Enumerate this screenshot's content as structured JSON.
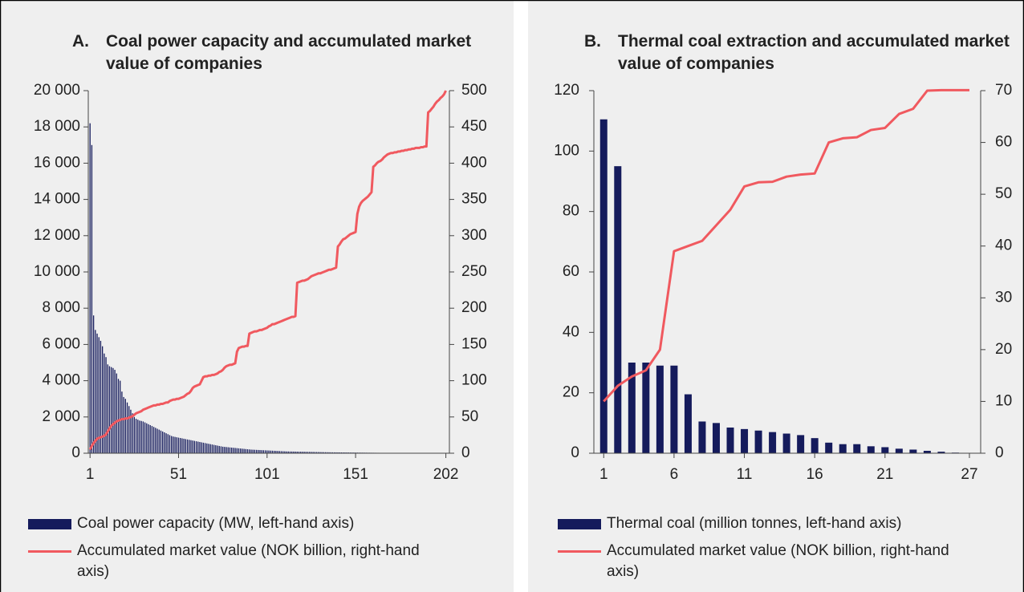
{
  "chart_data": [
    {
      "label": "A.",
      "title": "Coal power capacity and accumulated market value of companies",
      "type": "combo",
      "legend": "bottom",
      "grid": false,
      "x": [
        1,
        2,
        3,
        4,
        5,
        6,
        7,
        8,
        9,
        10,
        11,
        12,
        13,
        14,
        15,
        16,
        17,
        18,
        19,
        20,
        21,
        22,
        23,
        24,
        25,
        26,
        27,
        28,
        29,
        30,
        31,
        32,
        33,
        34,
        35,
        36,
        37,
        38,
        39,
        40,
        41,
        42,
        43,
        44,
        45,
        46,
        47,
        48,
        49,
        50,
        51,
        52,
        53,
        54,
        55,
        56,
        57,
        58,
        59,
        60,
        61,
        62,
        63,
        64,
        65,
        66,
        67,
        68,
        69,
        70,
        71,
        72,
        73,
        74,
        75,
        76,
        77,
        78,
        79,
        80,
        81,
        82,
        83,
        84,
        85,
        86,
        87,
        88,
        89,
        90,
        91,
        92,
        93,
        94,
        95,
        96,
        97,
        98,
        99,
        100,
        101,
        102,
        103,
        104,
        105,
        106,
        107,
        108,
        109,
        110,
        111,
        112,
        113,
        114,
        115,
        116,
        117,
        118,
        119,
        120,
        121,
        122,
        123,
        124,
        125,
        126,
        127,
        128,
        129,
        130,
        131,
        132,
        133,
        134,
        135,
        136,
        137,
        138,
        139,
        140,
        141,
        142,
        143,
        144,
        145,
        146,
        147,
        148,
        149,
        150,
        151,
        152,
        153,
        154,
        155,
        156,
        157,
        158,
        159,
        160,
        161,
        162,
        163,
        164,
        165,
        166,
        167,
        168,
        169,
        170,
        171,
        172,
        173,
        174,
        175,
        176,
        177,
        178,
        179,
        180,
        181,
        182,
        183,
        184,
        185,
        186,
        187,
        188,
        189,
        190,
        191,
        192,
        193,
        194,
        195,
        196,
        197,
        198,
        199,
        200,
        201,
        202
      ],
      "xlim": [
        0,
        204
      ],
      "xticks": [
        1,
        51,
        101,
        151,
        202
      ],
      "ylim": [
        0,
        20000
      ],
      "yticks": [
        0,
        {
          "value": 2000,
          "label": "2 000"
        },
        {
          "value": 4000,
          "label": "4 000"
        },
        {
          "value": 6000,
          "label": "6 000"
        },
        {
          "value": 8000,
          "label": "8 000"
        },
        {
          "value": 10000,
          "label": "10 000"
        },
        {
          "value": 12000,
          "label": "12 000"
        },
        {
          "value": 14000,
          "label": "14 000"
        },
        {
          "value": 16000,
          "label": "16 000"
        },
        {
          "value": 18000,
          "label": "18 000"
        },
        {
          "value": 20000,
          "label": "20 000"
        }
      ],
      "y2lim": [
        0,
        500
      ],
      "y2ticks": [
        0,
        50,
        100,
        150,
        200,
        250,
        300,
        350,
        400,
        450,
        500
      ],
      "series": [
        {
          "name": "Coal power capacity (MW, left-hand axis)",
          "type": "bar",
          "color": "#151b5c",
          "values": [
            18200,
            17000,
            7600,
            6800,
            6600,
            6400,
            6200,
            5900,
            5500,
            5300,
            4900,
            4800,
            4750,
            4700,
            4600,
            4400,
            4100,
            4000,
            3400,
            3100,
            3000,
            2800,
            2600,
            2400,
            2200,
            2000,
            1900,
            1850,
            1800,
            1780,
            1750,
            1700,
            1650,
            1600,
            1550,
            1500,
            1450,
            1400,
            1350,
            1300,
            1250,
            1200,
            1150,
            1100,
            1050,
            1000,
            950,
            920,
            900,
            880,
            860,
            840,
            820,
            800,
            780,
            760,
            740,
            720,
            700,
            680,
            660,
            640,
            620,
            600,
            580,
            560,
            540,
            520,
            500,
            480,
            460,
            440,
            420,
            400,
            380,
            360,
            350,
            340,
            330,
            320,
            310,
            300,
            290,
            280,
            270,
            260,
            250,
            240,
            230,
            220,
            210,
            200,
            195,
            190,
            185,
            180,
            175,
            170,
            165,
            160,
            155,
            150,
            145,
            140,
            135,
            130,
            125,
            120,
            115,
            110,
            105,
            100,
            98,
            96,
            94,
            92,
            90,
            88,
            86,
            84,
            82,
            80,
            78,
            76,
            74,
            72,
            70,
            68,
            66,
            64,
            62,
            60,
            58,
            56,
            54,
            52,
            50,
            49,
            48,
            47,
            46,
            45,
            44,
            43,
            42,
            41,
            40,
            39,
            38,
            37,
            36,
            35,
            34,
            33,
            32,
            31,
            30,
            29,
            28,
            27,
            26,
            25,
            24,
            23,
            22,
            21,
            20,
            20,
            19,
            19,
            18,
            18,
            17,
            17,
            16,
            16,
            15,
            15,
            14,
            14,
            13,
            13,
            12,
            12,
            11,
            11,
            10,
            10,
            9,
            9,
            8,
            8,
            7,
            7,
            6,
            6,
            5,
            5,
            4,
            4,
            3,
            2
          ]
        },
        {
          "name": "Accumulated market value (NOK billion, right-hand axis)",
          "type": "line",
          "axis": "y2",
          "color": "#f0595f",
          "values": [
            5,
            10,
            14,
            17,
            20,
            21,
            22,
            23,
            24,
            26,
            30,
            34,
            38,
            40,
            42,
            44,
            45,
            46,
            47,
            47,
            48,
            48,
            49,
            50,
            51,
            53,
            55,
            56,
            57,
            58,
            60,
            61,
            62,
            63,
            64,
            65,
            66,
            66,
            67,
            67,
            68,
            68,
            69,
            70,
            70,
            72,
            73,
            74,
            74,
            75,
            75,
            76,
            77,
            78,
            80,
            82,
            83,
            86,
            90,
            92,
            93,
            94,
            95,
            100,
            105,
            106,
            106,
            107,
            107,
            108,
            108,
            109,
            110,
            112,
            113,
            115,
            118,
            120,
            121,
            122,
            122,
            123,
            124,
            140,
            145,
            146,
            147,
            147,
            148,
            148,
            165,
            166,
            167,
            168,
            168,
            169,
            170,
            170,
            171,
            172,
            173,
            175,
            176,
            178,
            178,
            179,
            180,
            181,
            182,
            183,
            184,
            185,
            186,
            187,
            188,
            188,
            189,
            235,
            236,
            237,
            238,
            238,
            239,
            240,
            242,
            244,
            245,
            246,
            247,
            248,
            248,
            249,
            250,
            251,
            252,
            253,
            253,
            254,
            255,
            256,
            285,
            288,
            292,
            295,
            296,
            298,
            300,
            302,
            303,
            304,
            305,
            330,
            340,
            345,
            348,
            350,
            352,
            354,
            357,
            360,
            395,
            397,
            400,
            402,
            403,
            405,
            408,
            410,
            412,
            413,
            414,
            414,
            415,
            415,
            416,
            416,
            417,
            417,
            418,
            418,
            419,
            419,
            420,
            420,
            421,
            421,
            421,
            422,
            422,
            423,
            423,
            470,
            472,
            475,
            478,
            482,
            485,
            487,
            490,
            492,
            495,
            500
          ]
        }
      ]
    },
    {
      "label": "B.",
      "title": "Thermal coal extraction and accumulated market value of companies",
      "type": "combo",
      "legend": "bottom",
      "grid": false,
      "x": [
        1,
        2,
        3,
        4,
        5,
        6,
        7,
        8,
        9,
        10,
        11,
        12,
        13,
        14,
        15,
        16,
        17,
        18,
        19,
        20,
        21,
        22,
        23,
        24,
        25,
        26,
        27
      ],
      "xlim": [
        0.3,
        27.8
      ],
      "xticks": [
        1,
        6,
        11,
        16,
        21,
        27
      ],
      "ylim": [
        0,
        120
      ],
      "yticks": [
        0,
        20,
        40,
        60,
        80,
        100,
        120
      ],
      "y2lim": [
        0,
        70
      ],
      "y2ticks": [
        0,
        10,
        20,
        30,
        40,
        50,
        60,
        70
      ],
      "series": [
        {
          "name": "Thermal coal (million tonnes, left-hand axis)",
          "type": "bar",
          "color": "#151b5c",
          "values": [
            110.5,
            95,
            30,
            30,
            29,
            29,
            19.5,
            10.5,
            10,
            8.5,
            8,
            7.5,
            7,
            6.5,
            6,
            5,
            3.5,
            3,
            3,
            2.3,
            2,
            1.5,
            1.2,
            0.8,
            0.5,
            0.2,
            0.1
          ]
        },
        {
          "name": "Accumulated market value (NOK billion, right-hand axis)",
          "type": "line",
          "axis": "y2",
          "color": "#f0595f",
          "values": [
            10,
            13,
            14.8,
            16,
            20,
            39,
            40,
            41,
            44,
            47,
            51.5,
            52.3,
            52.4,
            53.4,
            53.8,
            54,
            60,
            60.8,
            61,
            62.4,
            62.8,
            65.5,
            66.5,
            70,
            70.1,
            70.1,
            70.1
          ]
        }
      ]
    }
  ]
}
